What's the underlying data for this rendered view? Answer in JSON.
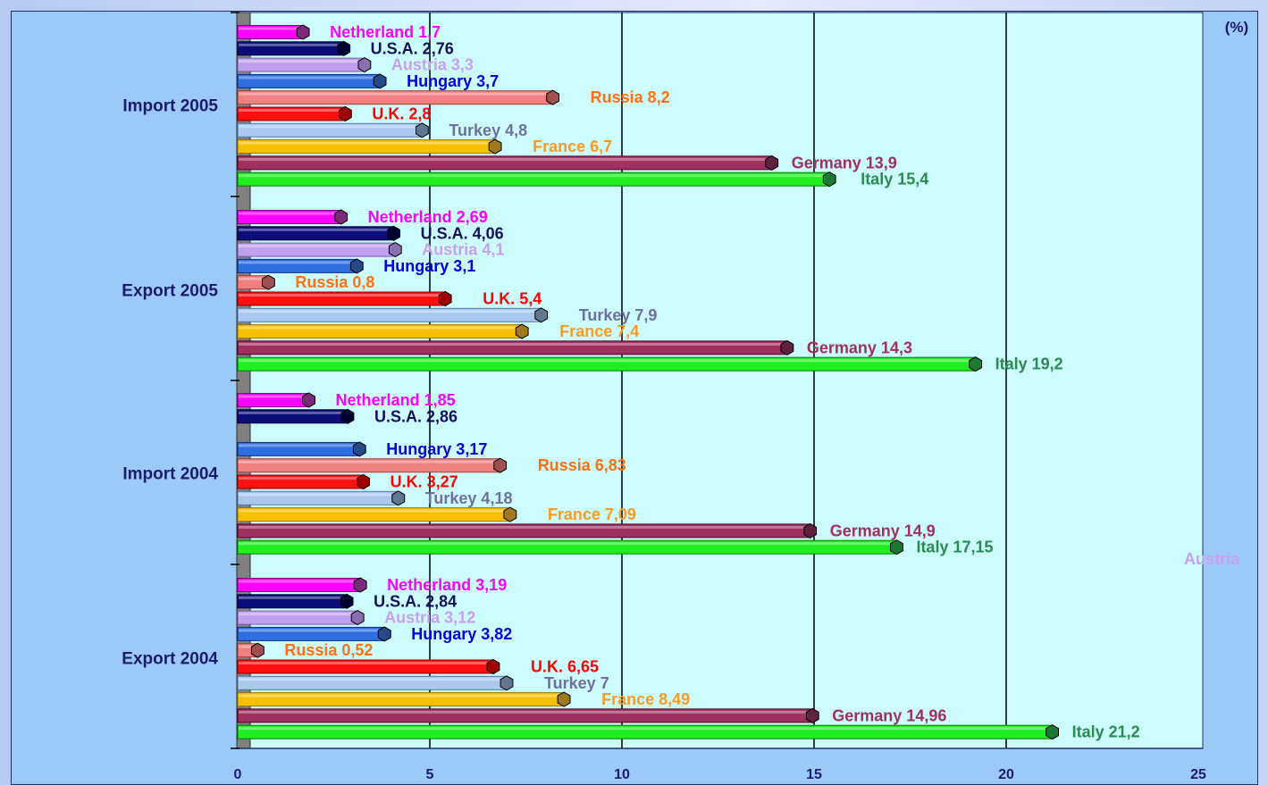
{
  "unit_label": "(%)",
  "stray_label": "Austria",
  "colors": {
    "Netherland": {
      "fill": "#ff00ff",
      "dark": "#800080",
      "cap": "#7a2a7a",
      "text": "#ff00ff"
    },
    "U.S.A.": {
      "fill": "#0d0d7a",
      "dark": "#000033",
      "cap": "#000033",
      "text": "#101060"
    },
    "Austria": {
      "fill": "#c0a0f0",
      "dark": "#7a60a8",
      "cap": "#8a70b0",
      "text": "#c8a0f0"
    },
    "Hungary": {
      "fill": "#2e6ee0",
      "dark": "#10308a",
      "cap": "#254a8a",
      "text": "#0000e0"
    },
    "Russia": {
      "fill": "#f08080",
      "dark": "#a04040",
      "cap": "#a05050",
      "text": "#ff7010"
    },
    "U.K.": {
      "fill": "#ff1010",
      "dark": "#900000",
      "cap": "#a00000",
      "text": "#ff0000"
    },
    "Turkey": {
      "fill": "#a8c8f0",
      "dark": "#5878a8",
      "cap": "#607890",
      "text": "#7070a0"
    },
    "France": {
      "fill": "#f8c000",
      "dark": "#a07800",
      "cap": "#a07820",
      "text": "#ff9a20"
    },
    "Germany": {
      "fill": "#a03060",
      "dark": "#500020",
      "cap": "#602040",
      "text": "#a03060"
    },
    "Italy": {
      "fill": "#20ee20",
      "dark": "#008000",
      "cap": "#1a7a30",
      "text": "#2a8a50"
    }
  },
  "chart_data": {
    "type": "bar",
    "orientation": "horizontal",
    "xlim": [
      0,
      25
    ],
    "xticks": [
      0,
      5,
      10,
      15,
      20,
      25
    ],
    "grid": "vertical",
    "unit": "(%)",
    "groups": [
      {
        "name": "Import 2005",
        "bars": [
          {
            "country": "Netherland",
            "value": 1.7,
            "label": "Netherland 1,7"
          },
          {
            "country": "U.S.A.",
            "value": 2.76,
            "label": "U.S.A. 2,76"
          },
          {
            "country": "Austria",
            "value": 3.3,
            "label": "Austria 3,3"
          },
          {
            "country": "Hungary",
            "value": 3.7,
            "label": "Hungary 3,7"
          },
          {
            "country": "Russia",
            "value": 8.2,
            "label": "Russia 8,2"
          },
          {
            "country": "U.K.",
            "value": 2.8,
            "label": "U.K. 2,8"
          },
          {
            "country": "Turkey",
            "value": 4.8,
            "label": "Turkey 4,8"
          },
          {
            "country": "France",
            "value": 6.7,
            "label": "France 6,7"
          },
          {
            "country": "Germany",
            "value": 13.9,
            "label": "Germany 13,9"
          },
          {
            "country": "Italy",
            "value": 15.4,
            "label": "Italy 15,4"
          }
        ]
      },
      {
        "name": "Export 2005",
        "bars": [
          {
            "country": "Netherland",
            "value": 2.69,
            "label": "Netherland 2,69"
          },
          {
            "country": "U.S.A.",
            "value": 4.06,
            "label": "U.S.A. 4,06"
          },
          {
            "country": "Austria",
            "value": 4.1,
            "label": "Austria 4,1"
          },
          {
            "country": "Hungary",
            "value": 3.1,
            "label": "Hungary 3,1"
          },
          {
            "country": "Russia",
            "value": 0.8,
            "label": "Russia 0,8"
          },
          {
            "country": "U.K.",
            "value": 5.4,
            "label": "U.K. 5,4"
          },
          {
            "country": "Turkey",
            "value": 7.9,
            "label": "Turkey 7,9"
          },
          {
            "country": "France",
            "value": 7.4,
            "label": "France 7,4"
          },
          {
            "country": "Germany",
            "value": 14.3,
            "label": "Germany 14,3"
          },
          {
            "country": "Italy",
            "value": 19.2,
            "label": "Italy 19,2"
          }
        ]
      },
      {
        "name": "Import 2004",
        "bars": [
          {
            "country": "Netherland",
            "value": 1.85,
            "label": "Netherland 1,85"
          },
          {
            "country": "U.S.A.",
            "value": 2.86,
            "label": "U.S.A. 2,86"
          },
          {
            "country": "Austria",
            "value": null,
            "label": ""
          },
          {
            "country": "Hungary",
            "value": 3.17,
            "label": "Hungary 3,17"
          },
          {
            "country": "Russia",
            "value": 6.83,
            "label": "Russia 6,83"
          },
          {
            "country": "U.K.",
            "value": 3.27,
            "label": "U.K. 3,27"
          },
          {
            "country": "Turkey",
            "value": 4.18,
            "label": "Turkey 4,18"
          },
          {
            "country": "France",
            "value": 7.09,
            "label": "France 7,09"
          },
          {
            "country": "Germany",
            "value": 14.9,
            "label": "Germany 14,9"
          },
          {
            "country": "Italy",
            "value": 17.15,
            "label": "Italy 17,15"
          }
        ]
      },
      {
        "name": "Export 2004",
        "bars": [
          {
            "country": "Netherland",
            "value": 3.19,
            "label": "Netherland 3,19"
          },
          {
            "country": "U.S.A.",
            "value": 2.84,
            "label": "U.S.A. 2,84"
          },
          {
            "country": "Austria",
            "value": 3.12,
            "label": "Austria 3,12"
          },
          {
            "country": "Hungary",
            "value": 3.82,
            "label": "Hungary 3,82"
          },
          {
            "country": "Russia",
            "value": 0.52,
            "label": "Russia 0,52"
          },
          {
            "country": "U.K.",
            "value": 6.65,
            "label": "U.K. 6,65"
          },
          {
            "country": "Turkey",
            "value": 7,
            "label": "Turkey 7"
          },
          {
            "country": "France",
            "value": 8.49,
            "label": "France 8,49"
          },
          {
            "country": "Germany",
            "value": 14.96,
            "label": "Germany 14,96"
          },
          {
            "country": "Italy",
            "value": 21.2,
            "label": "Italy 21,2"
          }
        ]
      }
    ]
  }
}
